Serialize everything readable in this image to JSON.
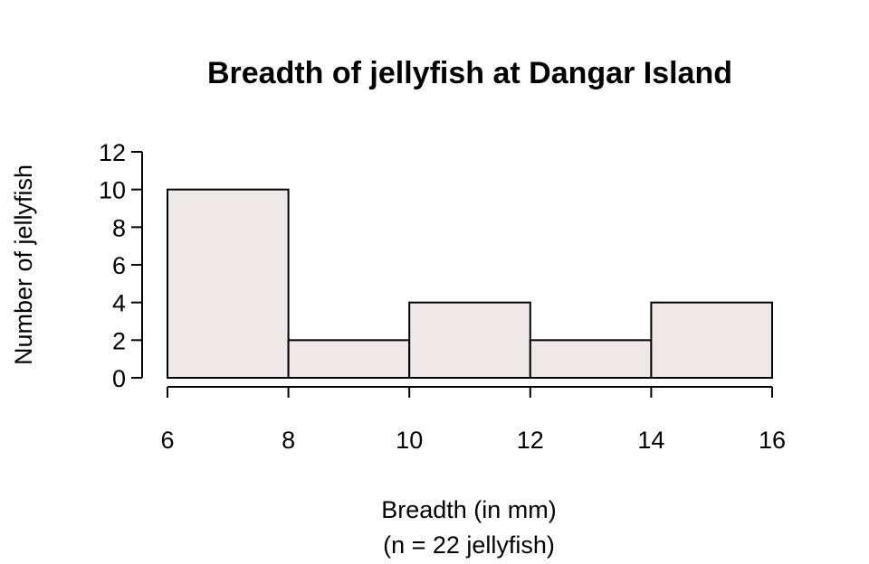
{
  "chart_data": {
    "type": "bar",
    "title": "Breadth of jellyfish at Dangar Island",
    "xlabel": "Breadth (in mm)",
    "xlabel_sub": "(n = 22 jellyfish)",
    "ylabel": "Number of jellyfish",
    "bins": [
      {
        "from": 6,
        "to": 8,
        "count": 10
      },
      {
        "from": 8,
        "to": 10,
        "count": 2
      },
      {
        "from": 10,
        "to": 12,
        "count": 4
      },
      {
        "from": 12,
        "to": 14,
        "count": 2
      },
      {
        "from": 14,
        "to": 16,
        "count": 4
      }
    ],
    "xlim": [
      6,
      16
    ],
    "ylim": [
      0,
      12
    ],
    "x_ticks": [
      "6",
      "8",
      "10",
      "12",
      "14",
      "16"
    ],
    "y_ticks": [
      "0",
      "2",
      "4",
      "6",
      "8",
      "10",
      "12"
    ],
    "bar_color": "#EEE8E8",
    "grid": false,
    "legend": "none"
  }
}
